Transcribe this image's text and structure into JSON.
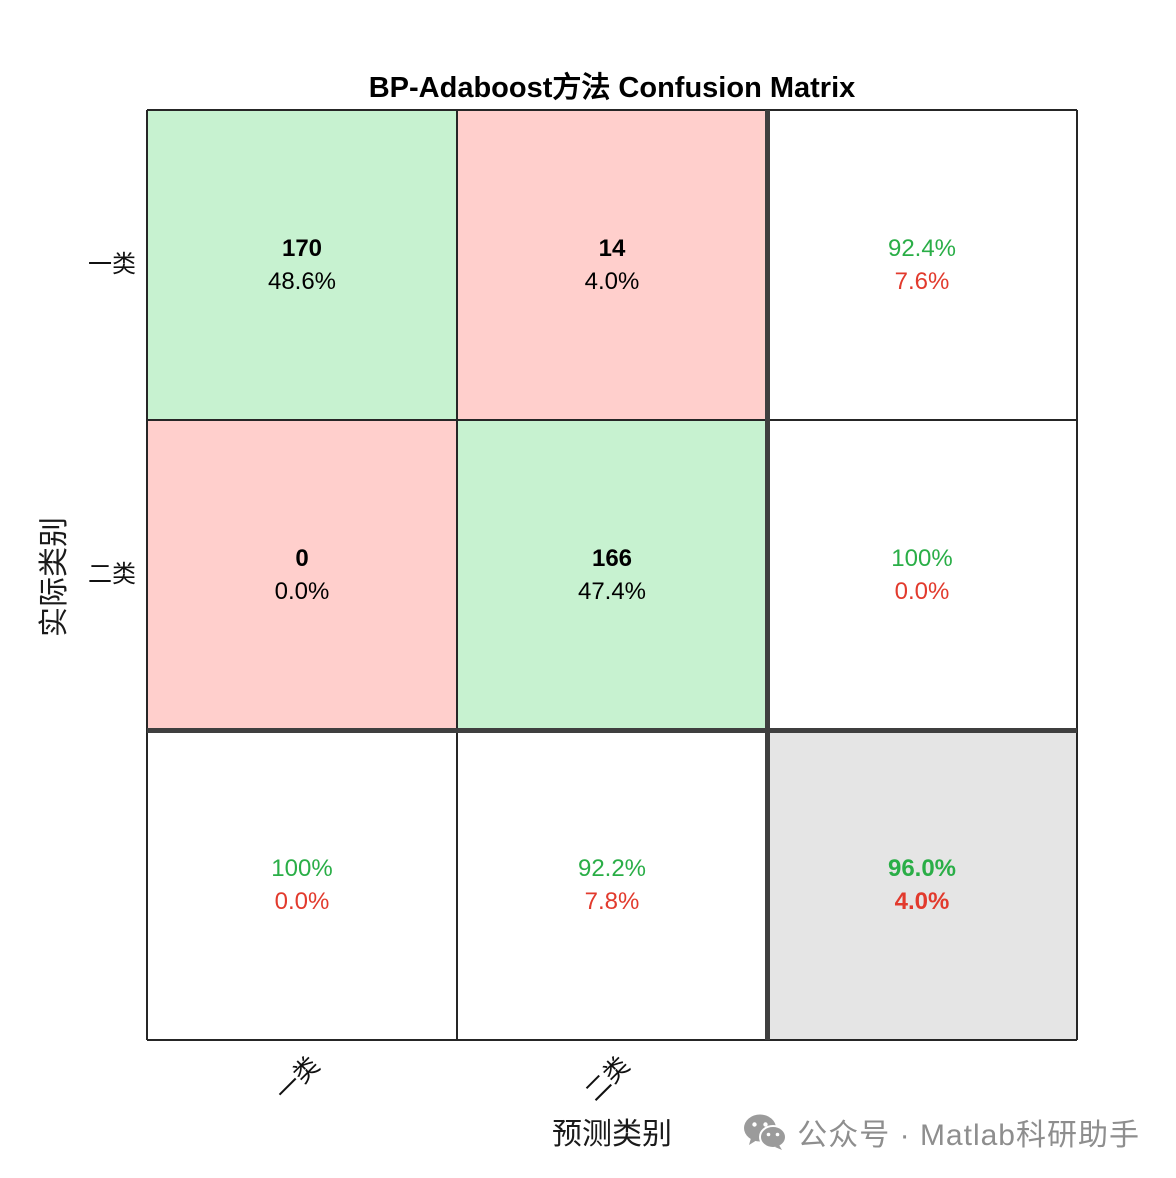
{
  "chart_data": {
    "type": "heatmap",
    "title": "BP-Adaboost方法 Confusion Matrix",
    "xlabel": "预测类别",
    "ylabel": "实际类别",
    "x_tick_labels": [
      "一类",
      "二类"
    ],
    "y_tick_labels": [
      "一类",
      "二类"
    ],
    "counts": [
      [
        170,
        14
      ],
      [
        0,
        166
      ]
    ],
    "cell_percent": [
      [
        "48.6%",
        "4.0%"
      ],
      [
        "0.0%",
        "47.4%"
      ]
    ],
    "row_summary": {
      "correct": [
        "92.4%",
        "100%"
      ],
      "incorrect": [
        "7.6%",
        "0.0%"
      ]
    },
    "column_summary": {
      "correct": [
        "100%",
        "92.2%"
      ],
      "incorrect": [
        "0.0%",
        "7.8%"
      ]
    },
    "overall": {
      "correct": "96.0%",
      "incorrect": "4.0%"
    },
    "grid": true,
    "colors": {
      "correct_cell": "#c7f2d0",
      "incorrect_cell": "#ffcfcc",
      "summary_cell": "#ffffff",
      "overall_cell": "#e5e5e5",
      "correct_text": "#2aae47",
      "incorrect_text": "#e23a2d"
    }
  },
  "watermark": {
    "icon": "wechat-icon",
    "text": "公众号 · Matlab科研助手"
  }
}
